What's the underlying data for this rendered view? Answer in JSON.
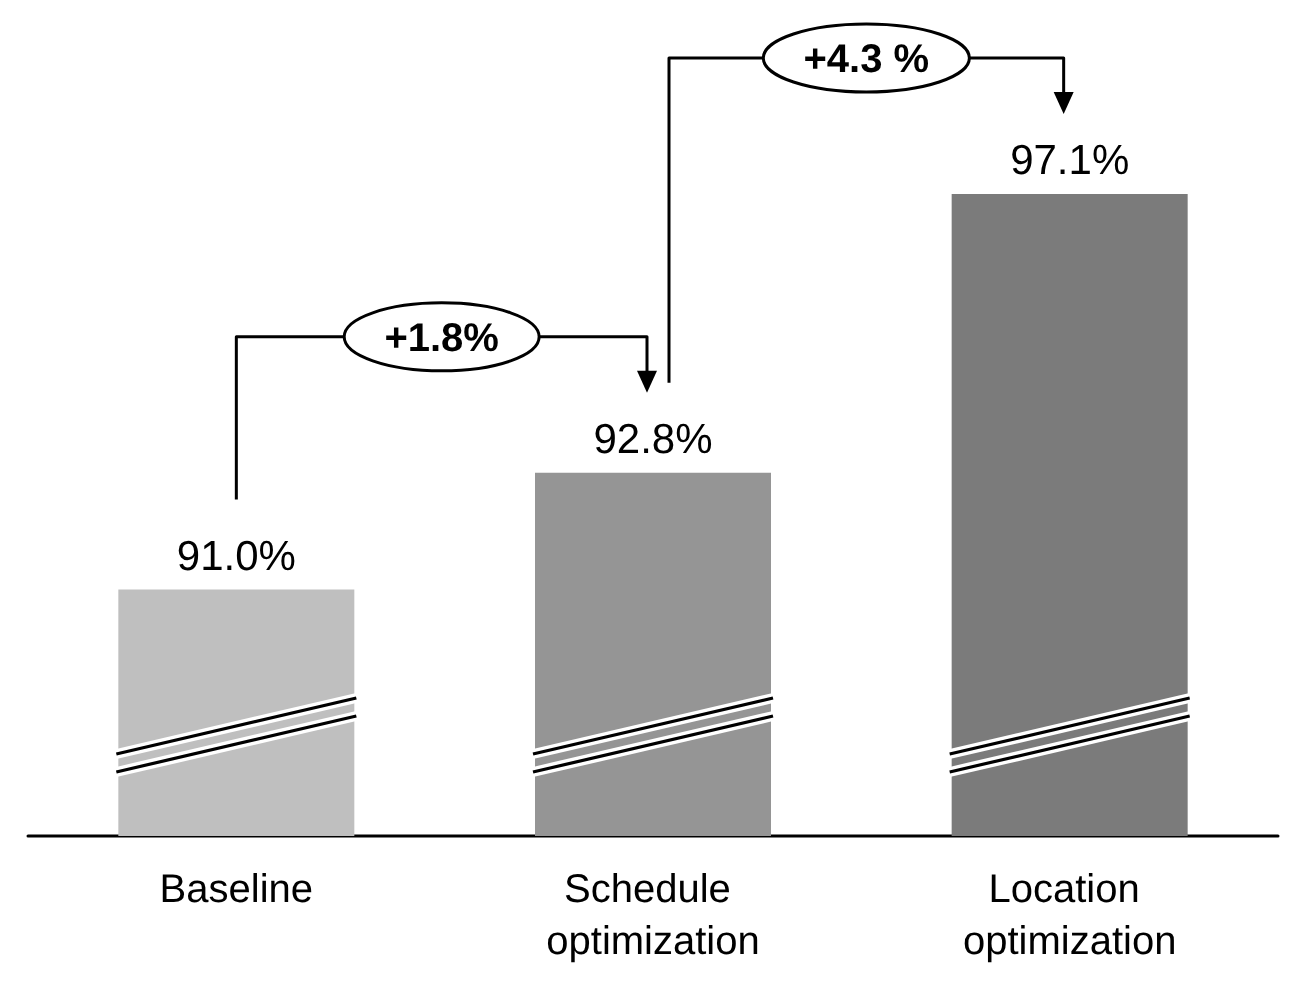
{
  "chart_data": {
    "type": "bar",
    "categories": [
      "Baseline",
      "Schedule optimization",
      "Location optimization"
    ],
    "values": [
      91.0,
      92.8,
      97.1
    ],
    "colors": [
      "#bfbfbf",
      "#959595",
      "#7b7b7b"
    ],
    "value_labels": [
      "91.0%",
      "92.8%",
      "97.1%"
    ],
    "ylim": [
      87.2,
      97.1
    ],
    "tick_labels": "x",
    "grid": false,
    "annotations": [
      "+1.8%",
      "+4.3 %"
    ]
  }
}
